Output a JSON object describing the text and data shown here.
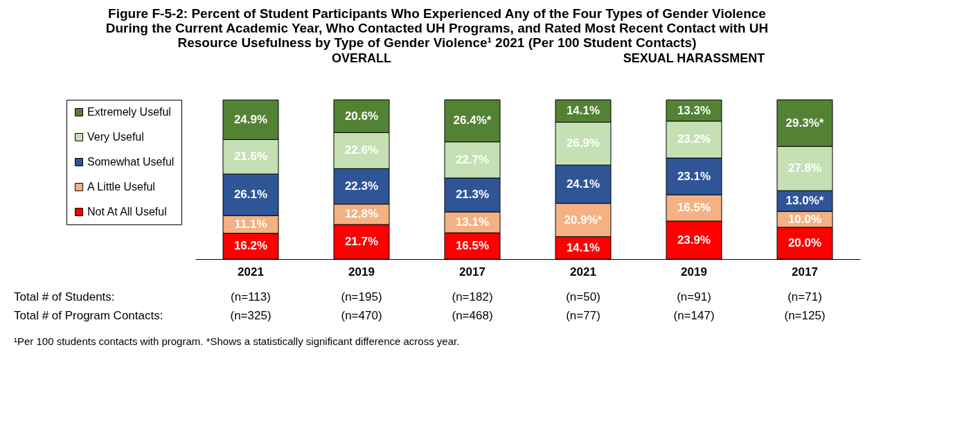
{
  "chart_data": [
    {
      "type": "bar",
      "stacked": true,
      "title": "Figure F-5-2:  Percent of Student Participants Who Experienced Any of the Four Types of Gender Violence During the Current Academic Year, Who Contacted UH Programs, and Rated Most Recent Contact with UH Resource Usefulness by Type of Gender Violence¹ 2021 (Per 100 Student Contacts)",
      "subtitle": "OVERALL",
      "categories": [
        "2021",
        "2019",
        "2017"
      ],
      "legend": "left",
      "grid": false,
      "tick_labels": "x",
      "series": [
        {
          "name": "Not At All Useful",
          "color": "#ff0000",
          "values": [
            16.2,
            21.7,
            16.5
          ],
          "value_labels": [
            "16.2%",
            "21.7%",
            "16.5%"
          ]
        },
        {
          "name": "A Little Useful",
          "color": "#f4b183",
          "values": [
            11.1,
            12.8,
            13.1
          ],
          "value_labels": [
            "11.1%",
            "12.8%",
            "13.1%"
          ]
        },
        {
          "name": "Somewhat Useful",
          "color": "#2f5597",
          "values": [
            26.1,
            22.3,
            21.3
          ],
          "value_labels": [
            "26.1%",
            "22.3%",
            "21.3%"
          ]
        },
        {
          "name": "Very Useful",
          "color": "#c5e0b4",
          "values": [
            21.6,
            22.6,
            22.7
          ],
          "value_labels": [
            "21.6%",
            "22.6%",
            "22.7%"
          ]
        },
        {
          "name": "Extremely Useful",
          "color": "#548235",
          "values": [
            24.9,
            20.6,
            26.4
          ],
          "value_labels": [
            "24.9%",
            "20.6%",
            "26.4%*"
          ]
        }
      ],
      "annotations": [
        "Total # of Students:",
        "Total # of Program Contacts:",
        "¹Per 100 students contacts with program. *Shows a statistically significant difference across year.",
        "(n=113)",
        "(n=195)",
        "(n=182)",
        "(n=325)",
        "(n=470)",
        "(n=468)"
      ]
    },
    {
      "type": "bar",
      "stacked": true,
      "subtitle": "SEXUAL HARASSMENT",
      "categories": [
        "2021",
        "2019",
        "2017"
      ],
      "grid": false,
      "tick_labels": "x",
      "series": [
        {
          "color": "#ff0000",
          "values": [
            14.1,
            23.9,
            20.0
          ],
          "value_labels": [
            "14.1%",
            "23.9%",
            "20.0%"
          ]
        },
        {
          "color": "#f4b183",
          "values": [
            20.9,
            16.5,
            10.0
          ],
          "value_labels": [
            "20.9%*",
            "16.5%",
            "10.0%"
          ]
        },
        {
          "color": "#2f5597",
          "values": [
            24.1,
            23.1,
            13.0
          ],
          "value_labels": [
            "24.1%",
            "23.1%",
            "13.0%*"
          ]
        },
        {
          "color": "#c5e0b4",
          "values": [
            26.9,
            23.2,
            27.8
          ],
          "value_labels": [
            "26.9%",
            "23.2%",
            "27.8%"
          ]
        },
        {
          "color": "#548235",
          "values": [
            14.1,
            13.3,
            29.3
          ],
          "value_labels": [
            "14.1%",
            "13.3%",
            "29.3%*"
          ]
        }
      ],
      "annotations": [
        "(n=50)",
        "(n=91)",
        "(n=71)",
        "(n=77)",
        "(n=147)",
        "(n=125)"
      ]
    }
  ]
}
